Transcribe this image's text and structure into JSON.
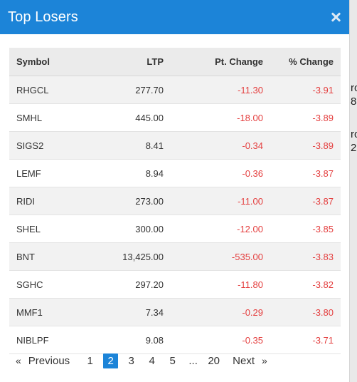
{
  "modal": {
    "title": "Top Losers",
    "close_icon": "close-icon"
  },
  "table": {
    "columns": [
      "Symbol",
      "LTP",
      "Pt. Change",
      "% Change"
    ],
    "rows": [
      {
        "symbol": "RHGCL",
        "ltp": "277.70",
        "pt_change": "-11.30",
        "pct_change": "-3.91"
      },
      {
        "symbol": "SMHL",
        "ltp": "445.00",
        "pt_change": "-18.00",
        "pct_change": "-3.89"
      },
      {
        "symbol": "SIGS2",
        "ltp": "8.41",
        "pt_change": "-0.34",
        "pct_change": "-3.89"
      },
      {
        "symbol": "LEMF",
        "ltp": "8.94",
        "pt_change": "-0.36",
        "pct_change": "-3.87"
      },
      {
        "symbol": "RIDI",
        "ltp": "273.00",
        "pt_change": "-11.00",
        "pct_change": "-3.87"
      },
      {
        "symbol": "SHEL",
        "ltp": "300.00",
        "pt_change": "-12.00",
        "pct_change": "-3.85"
      },
      {
        "symbol": "BNT",
        "ltp": "13,425.00",
        "pt_change": "-535.00",
        "pct_change": "-3.83"
      },
      {
        "symbol": "SGHC",
        "ltp": "297.20",
        "pt_change": "-11.80",
        "pct_change": "-3.82"
      },
      {
        "symbol": "MMF1",
        "ltp": "7.34",
        "pt_change": "-0.29",
        "pct_change": "-3.80"
      },
      {
        "symbol": "NIBLPF",
        "ltp": "9.08",
        "pt_change": "-0.35",
        "pct_change": "-3.71"
      }
    ]
  },
  "pagination": {
    "prev_arrow": "«",
    "prev_label": "Previous",
    "pages": [
      "1",
      "2",
      "3",
      "4",
      "5"
    ],
    "active_page": "2",
    "ellipsis": "...",
    "last_page": "20",
    "next_label": "Next",
    "next_arrow": "»"
  },
  "backdrop": {
    "peek_lines": [
      "ro",
      "8",
      "ro",
      "2"
    ]
  },
  "colors": {
    "header_bg": "#1c84d8",
    "negative": "#e43f3f",
    "active_page_bg": "#1c84d8"
  }
}
